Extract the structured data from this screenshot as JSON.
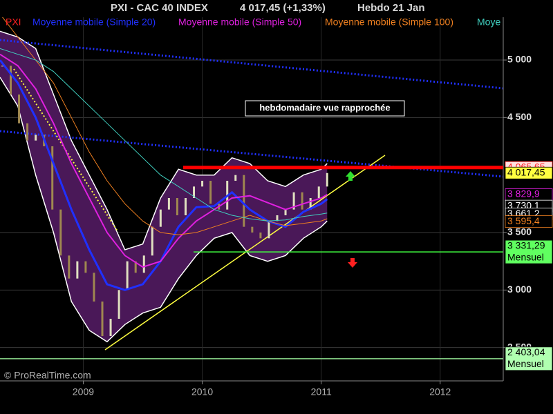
{
  "chart_data": {
    "type": "candlestick",
    "title": "PXI - CAC 40 INDEX",
    "last": "4 017,45 (+1,33%)",
    "period": "Hebdo  21 Jan",
    "annotation": "hebdomadaire vue rapprochée",
    "copyright": "© ProRealTime.com",
    "xlim": [
      2008.3,
      2012.53
    ],
    "ylim": [
      2210,
      5372
    ],
    "xticks": [
      2009,
      2010,
      2011,
      2012
    ],
    "yticks": [
      {
        "value": 5000,
        "label": "5 000"
      },
      {
        "value": 4500,
        "label": "4 500"
      },
      {
        "value": 3500,
        "label": "3 500"
      },
      {
        "value": 3000,
        "label": "3 000"
      },
      {
        "value": 2500,
        "label": "2 500"
      }
    ],
    "price": {
      "name": "PXI",
      "color": "#ff2020",
      "up_color": "#e0e0c0",
      "down_color": "#a08850",
      "x": [
        2008.32,
        2008.39,
        2008.46,
        2008.53,
        2008.6,
        2008.67,
        2008.74,
        2008.81,
        2008.88,
        2008.95,
        2009.02,
        2009.09,
        2009.16,
        2009.23,
        2009.3,
        2009.37,
        2009.44,
        2009.51,
        2009.58,
        2009.65,
        2009.72,
        2009.79,
        2009.86,
        2009.93,
        2010.0,
        2010.07,
        2010.14,
        2010.21,
        2010.28,
        2010.35,
        2010.42,
        2010.49,
        2010.56,
        2010.63,
        2010.7,
        2010.77,
        2010.84,
        2010.91,
        2010.98,
        2011.05
      ],
      "close": [
        4950,
        4700,
        4450,
        4300,
        4350,
        4250,
        3700,
        3300,
        3100,
        3250,
        3150,
        2900,
        2600,
        2750,
        3000,
        3250,
        3150,
        3300,
        3550,
        3700,
        3800,
        3650,
        3800,
        3900,
        3950,
        3750,
        3700,
        3950,
        4000,
        3550,
        3500,
        3450,
        3600,
        3650,
        3700,
        3850,
        3700,
        3800,
        3900,
        4017.45
      ]
    },
    "indicator_x": [
      2008.3,
      2008.45,
      2008.6,
      2008.75,
      2008.9,
      2009.05,
      2009.2,
      2009.35,
      2009.5,
      2009.65,
      2009.8,
      2009.95,
      2010.1,
      2010.25,
      2010.4,
      2010.55,
      2010.7,
      2010.85,
      2011.0,
      2011.05
    ],
    "band": {
      "fill": "#4a1858",
      "edge": "#ffffff",
      "upper": [
        5250,
        5200,
        5100,
        4700,
        4300,
        4000,
        3700,
        3350,
        3400,
        3800,
        4050,
        4000,
        4000,
        4150,
        4100,
        3950,
        3900,
        4000,
        4050,
        4100
      ],
      "lower": [
        4850,
        4600,
        4000,
        3500,
        2900,
        2650,
        2550,
        2700,
        2800,
        2850,
        3100,
        3300,
        3450,
        3500,
        3300,
        3250,
        3300,
        3450,
        3550,
        3600
      ]
    },
    "series": [
      {
        "name": "Moyenne mobile (Simple 20)",
        "color": "#2030ff",
        "width": 3,
        "values": [
          5000,
          4800,
          4500,
          4100,
          3700,
          3350,
          3050,
          3000,
          3050,
          3250,
          3550,
          3720,
          3730,
          3850,
          3700,
          3600,
          3550,
          3680,
          3750,
          3790
        ]
      },
      {
        "name": "Moyenne mobile (Simple 50)",
        "color": "#e020e0",
        "width": 2,
        "values": [
          5050,
          4950,
          4750,
          4450,
          4100,
          3800,
          3500,
          3300,
          3200,
          3250,
          3450,
          3600,
          3700,
          3800,
          3820,
          3760,
          3700,
          3750,
          3800,
          3830
        ]
      },
      {
        "name": "Moyenne mobile (Simple 100)",
        "color": "#f08020",
        "width": 1,
        "values": [
          5400,
          5200,
          5000,
          4800,
          4500,
          4200,
          3950,
          3750,
          3600,
          3500,
          3480,
          3500,
          3550,
          3600,
          3650,
          3600,
          3560,
          3580,
          3600,
          3620
        ]
      },
      {
        "name": "Moye",
        "color": "#40d0c0",
        "width": 1,
        "values": [
          5100,
          5050,
          5000,
          4900,
          4750,
          4600,
          4450,
          4300,
          4150,
          4000,
          3900,
          3800,
          3700,
          3650,
          3620,
          3600,
          3610,
          3640,
          3660,
          3670
        ]
      }
    ],
    "levels": [
      {
        "value": 4065.65,
        "label": "4 065,65",
        "color": "#ff2020",
        "bg": "#ffe0e0",
        "line_color": "#ff0000"
      },
      {
        "value": 4017.45,
        "label": "4 017,45",
        "color": "#000000",
        "bg": "#ffff40"
      },
      {
        "value": 3829.9,
        "label": "3 829,9",
        "color": "#e020e0",
        "bg": "#000000"
      },
      {
        "value": 3730.1,
        "label": "3 730,1",
        "color": "#ffffff",
        "bg": "#000000"
      },
      {
        "value": 3661.2,
        "label": "3 661,2",
        "color": "#ffffff",
        "bg": "#000000"
      },
      {
        "value": 3595.4,
        "label": "3 595,4",
        "color": "#f08020",
        "bg": "#000000"
      },
      {
        "value": 3331.29,
        "label": "3 331,29",
        "note": "Mensuel",
        "color": "#000000",
        "bg": "#60ff60",
        "line_color": "#40ff40"
      },
      {
        "value": 2403.04,
        "label": "2 403,04",
        "note": "Mensuel",
        "color": "#000000",
        "bg": "#b0ffb0",
        "line_color": "#90e090"
      }
    ]
  }
}
